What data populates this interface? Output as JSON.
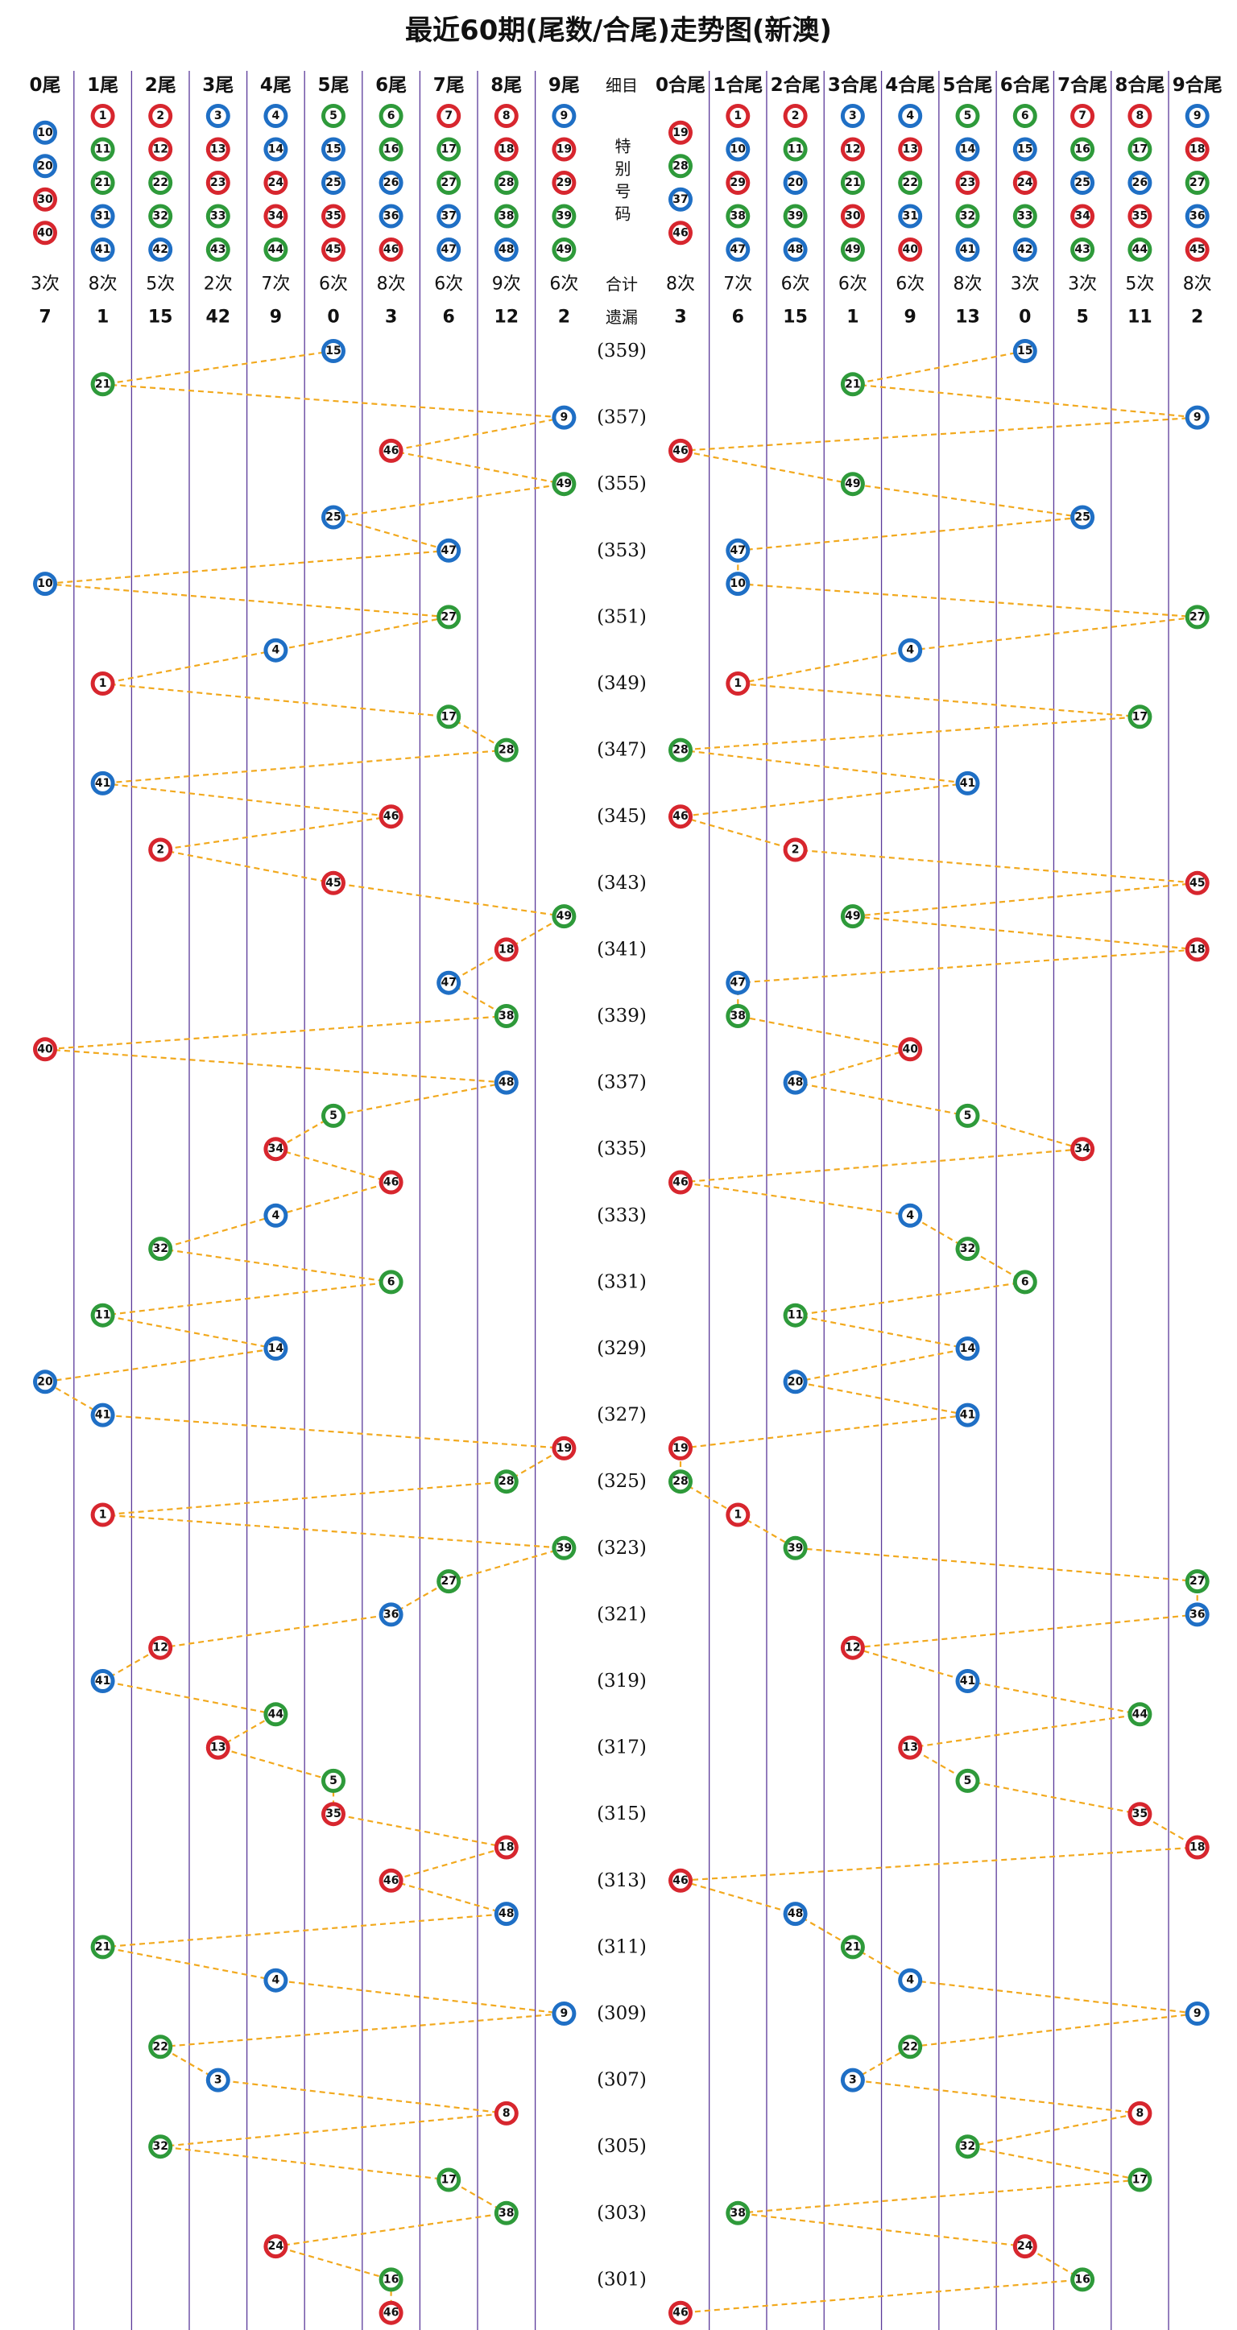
{
  "title": "最近60期(尾数/合尾)走势图(新澳)",
  "left": {
    "columns": [
      {
        "label": "0尾",
        "numbers": [
          10,
          20,
          30,
          40
        ],
        "count": "3次",
        "missing": 7
      },
      {
        "label": "1尾",
        "numbers": [
          1,
          11,
          21,
          31,
          41
        ],
        "count": "8次",
        "missing": 1
      },
      {
        "label": "2尾",
        "numbers": [
          2,
          12,
          22,
          32,
          42
        ],
        "count": "5次",
        "missing": 15
      },
      {
        "label": "3尾",
        "numbers": [
          3,
          13,
          23,
          33,
          43
        ],
        "count": "2次",
        "missing": 42
      },
      {
        "label": "4尾",
        "numbers": [
          4,
          14,
          24,
          34,
          44
        ],
        "count": "7次",
        "missing": 9
      },
      {
        "label": "5尾",
        "numbers": [
          5,
          15,
          25,
          35,
          45
        ],
        "count": "6次",
        "missing": 0
      },
      {
        "label": "6尾",
        "numbers": [
          6,
          16,
          26,
          36,
          46
        ],
        "count": "8次",
        "missing": 3
      },
      {
        "label": "7尾",
        "numbers": [
          7,
          17,
          27,
          37,
          47
        ],
        "count": "6次",
        "missing": 6
      },
      {
        "label": "8尾",
        "numbers": [
          8,
          18,
          28,
          38,
          48
        ],
        "count": "9次",
        "missing": 12
      },
      {
        "label": "9尾",
        "numbers": [
          9,
          19,
          29,
          39,
          49
        ],
        "count": "6次",
        "missing": 2
      }
    ]
  },
  "middle": {
    "label": "细目",
    "special": "特别号码",
    "count_label": "合计",
    "missing_label": "遗漏"
  },
  "right": {
    "columns": [
      {
        "label": "0合尾",
        "numbers": [
          19,
          28,
          37,
          46
        ],
        "count": "8次",
        "missing": 3
      },
      {
        "label": "1合尾",
        "numbers": [
          1,
          10,
          29,
          38,
          47
        ],
        "count": "7次",
        "missing": 6
      },
      {
        "label": "2合尾",
        "numbers": [
          2,
          11,
          20,
          39,
          48
        ],
        "count": "6次",
        "missing": 15
      },
      {
        "label": "3合尾",
        "numbers": [
          3,
          12,
          21,
          30,
          49
        ],
        "count": "6次",
        "missing": 1
      },
      {
        "label": "4合尾",
        "numbers": [
          4,
          13,
          22,
          31,
          40
        ],
        "count": "6次",
        "missing": 9
      },
      {
        "label": "5合尾",
        "numbers": [
          5,
          14,
          23,
          32,
          41
        ],
        "count": "8次",
        "missing": 13
      },
      {
        "label": "6合尾",
        "numbers": [
          6,
          15,
          24,
          33,
          42
        ],
        "count": "3次",
        "missing": 0
      },
      {
        "label": "7合尾",
        "numbers": [
          7,
          16,
          25,
          34,
          43
        ],
        "count": "3次",
        "missing": 5
      },
      {
        "label": "8合尾",
        "numbers": [
          8,
          17,
          26,
          35,
          44
        ],
        "count": "5次",
        "missing": 11
      },
      {
        "label": "9合尾",
        "numbers": [
          9,
          18,
          27,
          36,
          45
        ],
        "count": "8次",
        "missing": 2
      }
    ]
  },
  "draws": [
    {
      "period": "(359)",
      "number": 15
    },
    {
      "period": null,
      "number": 21
    },
    {
      "period": "(357)",
      "number": 9
    },
    {
      "period": null,
      "number": 46
    },
    {
      "period": "(355)",
      "number": 49
    },
    {
      "period": null,
      "number": 25
    },
    {
      "period": "(353)",
      "number": 47
    },
    {
      "period": null,
      "number": 10
    },
    {
      "period": "(351)",
      "number": 27
    },
    {
      "period": null,
      "number": 4
    },
    {
      "period": "(349)",
      "number": 1
    },
    {
      "period": null,
      "number": 17
    },
    {
      "period": "(347)",
      "number": 28
    },
    {
      "period": null,
      "number": 41
    },
    {
      "period": "(345)",
      "number": 46
    },
    {
      "period": null,
      "number": 2
    },
    {
      "period": "(343)",
      "number": 45
    },
    {
      "period": null,
      "number": 49
    },
    {
      "period": "(341)",
      "number": 18
    },
    {
      "period": null,
      "number": 47
    },
    {
      "period": "(339)",
      "number": 38
    },
    {
      "period": null,
      "number": 40
    },
    {
      "period": "(337)",
      "number": 48
    },
    {
      "period": null,
      "number": 5
    },
    {
      "period": "(335)",
      "number": 34
    },
    {
      "period": null,
      "number": 46
    },
    {
      "period": "(333)",
      "number": 4
    },
    {
      "period": null,
      "number": 32
    },
    {
      "period": "(331)",
      "number": 6
    },
    {
      "period": null,
      "number": 11
    },
    {
      "period": "(329)",
      "number": 14
    },
    {
      "period": null,
      "number": 20
    },
    {
      "period": "(327)",
      "number": 41
    },
    {
      "period": null,
      "number": 19
    },
    {
      "period": "(325)",
      "number": 28
    },
    {
      "period": null,
      "number": 1
    },
    {
      "period": "(323)",
      "number": 39
    },
    {
      "period": null,
      "number": 27
    },
    {
      "period": "(321)",
      "number": 36
    },
    {
      "period": null,
      "number": 12
    },
    {
      "period": "(319)",
      "number": 41
    },
    {
      "period": null,
      "number": 44
    },
    {
      "period": "(317)",
      "number": 13
    },
    {
      "period": null,
      "number": 5
    },
    {
      "period": "(315)",
      "number": 35
    },
    {
      "period": null,
      "number": 18
    },
    {
      "period": "(313)",
      "number": 46
    },
    {
      "period": null,
      "number": 48
    },
    {
      "period": "(311)",
      "number": 21
    },
    {
      "period": null,
      "number": 4
    },
    {
      "period": "(309)",
      "number": 9
    },
    {
      "period": null,
      "number": 22
    },
    {
      "period": "(307)",
      "number": 3
    },
    {
      "period": null,
      "number": 8
    },
    {
      "period": "(305)",
      "number": 32
    },
    {
      "period": null,
      "number": 17
    },
    {
      "period": "(303)",
      "number": 38
    },
    {
      "period": null,
      "number": 24
    },
    {
      "period": "(301)",
      "number": 16
    },
    {
      "period": null,
      "number": 46
    }
  ],
  "ball_colors": [
    {
      "color": "#d7262e",
      "numbers": [
        1,
        2,
        7,
        8,
        12,
        13,
        18,
        19,
        23,
        24,
        29,
        30,
        34,
        35,
        40,
        45,
        46
      ]
    },
    {
      "color": "#1f6fc5",
      "numbers": [
        3,
        4,
        9,
        10,
        14,
        15,
        20,
        25,
        26,
        31,
        36,
        37,
        41,
        42,
        47,
        48
      ]
    },
    {
      "color": "#2e9a3a",
      "numbers": [
        5,
        6,
        11,
        16,
        17,
        21,
        22,
        27,
        28,
        32,
        33,
        38,
        39,
        43,
        44,
        49
      ]
    }
  ],
  "line_color": "#f2a91e",
  "rule_color": "#5b3a9a"
}
